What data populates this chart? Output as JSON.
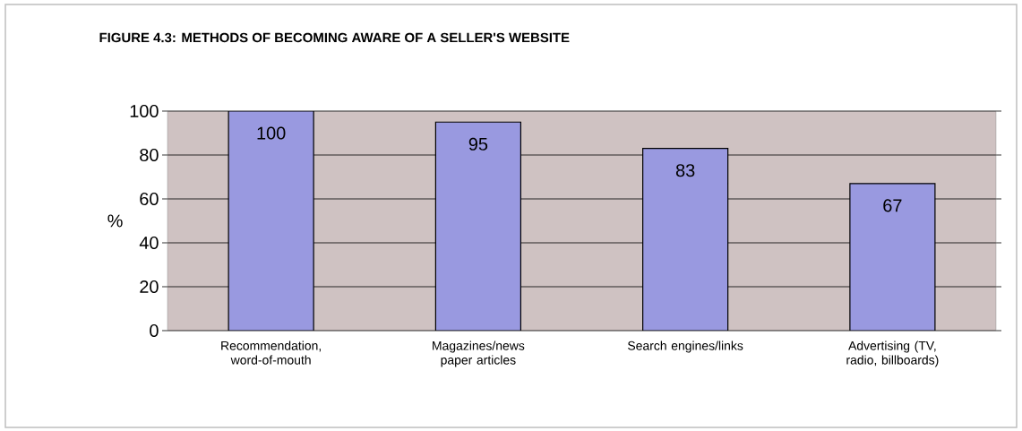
{
  "chart_data": {
    "type": "bar",
    "title": "**FIGURE 4.3:**  METHODS OF BECOMING AWARE OF A SELLER'S WEBSITE",
    "ylabel": "%",
    "categories": [
      "Recommendation, word-of-mouth",
      "Magazines/news paper articles",
      "Search engines/links",
      "Advertising (TV, radio, billboards)"
    ],
    "values": [
      100,
      95,
      83,
      67
    ],
    "color": "#9999e0",
    "ylim": [
      0,
      100
    ],
    "yticks": [
      0,
      20,
      40,
      60,
      80,
      100
    ],
    "grid": "y",
    "data_labels": true
  }
}
